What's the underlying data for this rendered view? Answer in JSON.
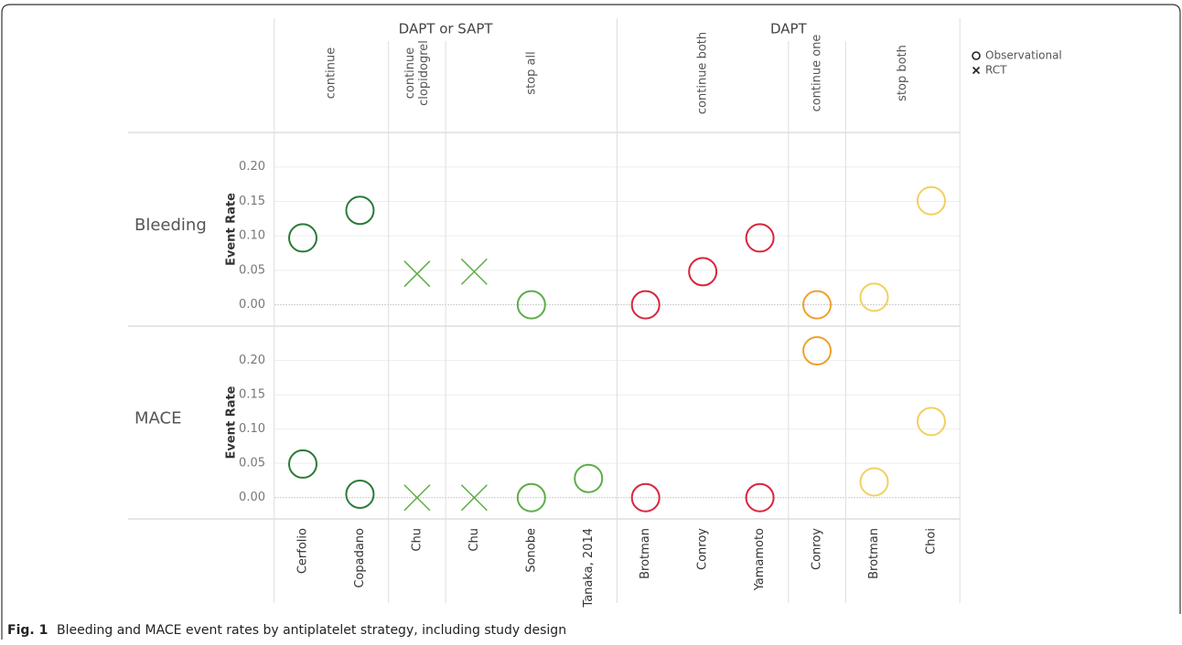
{
  "chart_data": {
    "type": "scatter",
    "rows": [
      "Bleeding",
      "MACE"
    ],
    "y_label": "Event Rate",
    "ylim": [
      -0.031,
      0.25
    ],
    "yticks": [
      {
        "value": 0,
        "label": "0.00"
      },
      {
        "value": 0.05,
        "label": "0.05"
      },
      {
        "value": 0.1,
        "label": "0.10"
      },
      {
        "value": 0.15,
        "label": "0.15"
      },
      {
        "value": 0.2,
        "label": "0.20"
      }
    ],
    "grid": true,
    "designs": [
      {
        "name": "Observational",
        "marker": "circle"
      },
      {
        "name": "RCT",
        "marker": "x"
      }
    ],
    "legend": "top-right",
    "groups": [
      {
        "label": "DAPT or SAPT",
        "strategies": [
          {
            "label": [
              "continue"
            ],
            "studies": [
              {
                "name": "Cerfolio",
                "design": 0,
                "color": "#2a7a38",
                "values": [
                  0.097,
                  0.049
                ]
              },
              {
                "name": "Copadano",
                "design": 0,
                "color": "#2a7a38",
                "values": [
                  0.137,
                  0.005
                ]
              }
            ]
          },
          {
            "label": [
              "continue",
              "clopidogrel"
            ],
            "studies": [
              {
                "name": "Chu",
                "design": 1,
                "color": "#5cae48",
                "values": [
                  0.045,
                  0
                ]
              }
            ]
          },
          {
            "label": [
              "stop all"
            ],
            "studies": [
              {
                "name": "Chu",
                "design": 1,
                "color": "#5cae48",
                "values": [
                  0.048,
                  0
                ]
              },
              {
                "name": "Sonobe",
                "design": 0,
                "color": "#5cae48",
                "values": [
                  0,
                  0
                ]
              },
              {
                "name": "Tanaka, 2014",
                "design": 0,
                "color": "#5cae48",
                "values": [
                  null,
                  0.028
                ]
              }
            ]
          }
        ]
      },
      {
        "label": "DAPT",
        "strategies": [
          {
            "label": [
              "continue both"
            ],
            "studies": [
              {
                "name": "Brotman",
                "design": 0,
                "color": "#d7263d",
                "values": [
                  0,
                  0
                ]
              },
              {
                "name": "Conroy",
                "design": 0,
                "color": "#d7263d",
                "values": [
                  0.048,
                  null
                ]
              },
              {
                "name": "Yamamoto",
                "design": 0,
                "color": "#d7263d",
                "values": [
                  0.097,
                  0
                ]
              }
            ]
          },
          {
            "label": [
              "continue one"
            ],
            "studies": [
              {
                "name": "Conroy",
                "design": 0,
                "color": "#f0a030",
                "values": [
                  0,
                  0.214
                ]
              }
            ]
          },
          {
            "label": [
              "stop both"
            ],
            "studies": [
              {
                "name": "Brotman",
                "design": 0,
                "color": "#f2d060",
                "values": [
                  0.011,
                  0.023
                ]
              },
              {
                "name": "Choi",
                "design": 0,
                "color": "#f2d060",
                "values": [
                  0.151,
                  0.111
                ]
              }
            ]
          }
        ]
      }
    ],
    "caption_label": "Fig. 1",
    "caption": "Bleeding and MACE event rates by antiplatelet strategy, including study design"
  }
}
